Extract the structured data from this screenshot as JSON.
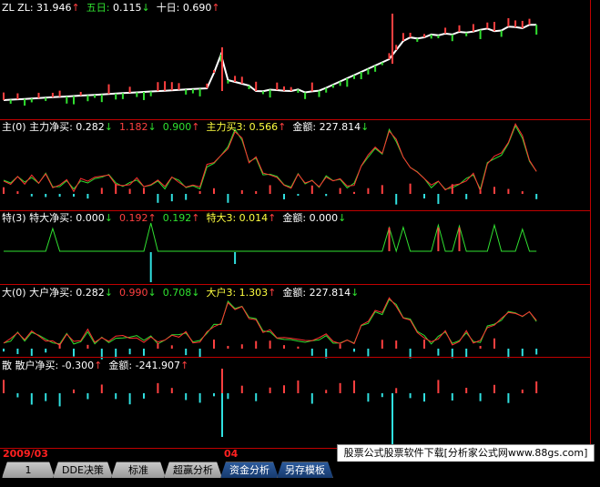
{
  "panels": {
    "zl": {
      "prefix": "ZL",
      "label": "ZL: ",
      "value": "31.946",
      "value_arrow": "↑",
      "ma5_label": "五日: ",
      "ma5_value": "0.115",
      "ma5_arrow": "↓",
      "ma10_label": "十日: ",
      "ma10_value": "0.690",
      "ma10_arrow": "↑"
    },
    "main": {
      "prefix": "主(0)",
      "label": "主力净买: ",
      "value": "0.282",
      "value_arrow": "↓",
      "v2": "1.182",
      "v2_arrow": "↓",
      "v3": "0.900",
      "v3_arrow": "↑",
      "v4_label": "主力买3: ",
      "v4": "0.566",
      "v4_arrow": "↑",
      "amt_label": "金额: ",
      "amt": "227.814",
      "amt_arrow": "↓"
    },
    "special": {
      "prefix": "特(3)",
      "label": "特大净买: ",
      "value": "0.000",
      "value_arrow": "↓",
      "v2": "0.192",
      "v2_arrow": "↑",
      "v3": "0.192",
      "v3_arrow": "↑",
      "v4_label": "特大3: ",
      "v4": "0.014",
      "v4_arrow": "↑",
      "amt_label": "金额: ",
      "amt": "0.000",
      "amt_arrow": "↓"
    },
    "large": {
      "prefix": "大(0)",
      "label": "大户净买: ",
      "value": "0.282",
      "value_arrow": "↓",
      "v2": "0.990",
      "v2_arrow": "↓",
      "v3": "0.708",
      "v3_arrow": "↓",
      "v4_label": "大户3: ",
      "v4": "1.303",
      "v4_arrow": "↑",
      "amt_label": "金额: ",
      "amt": "227.814",
      "amt_arrow": "↓"
    },
    "retail": {
      "prefix": "散",
      "label": "散户净买: ",
      "value": "-0.300",
      "value_arrow": "↑",
      "amt_label": "金额: ",
      "amt": "-241.907",
      "amt_arrow": "↑"
    }
  },
  "dates": [
    "2009/03",
    "04"
  ],
  "banner": "股票公式股票软件下载[分析家公式网www.88gs.com]",
  "tabs": [
    "1",
    "DDE决策",
    "标准",
    "超赢分析",
    "资金分析",
    "另存模板"
  ],
  "colors": {
    "up": "#ff4040",
    "down": "#30e0e0",
    "line_white": "#ffffff",
    "line_green": "#30e030",
    "line_red": "#ff3030",
    "line_yellow": "#ffff40",
    "border": "#c00000"
  }
}
